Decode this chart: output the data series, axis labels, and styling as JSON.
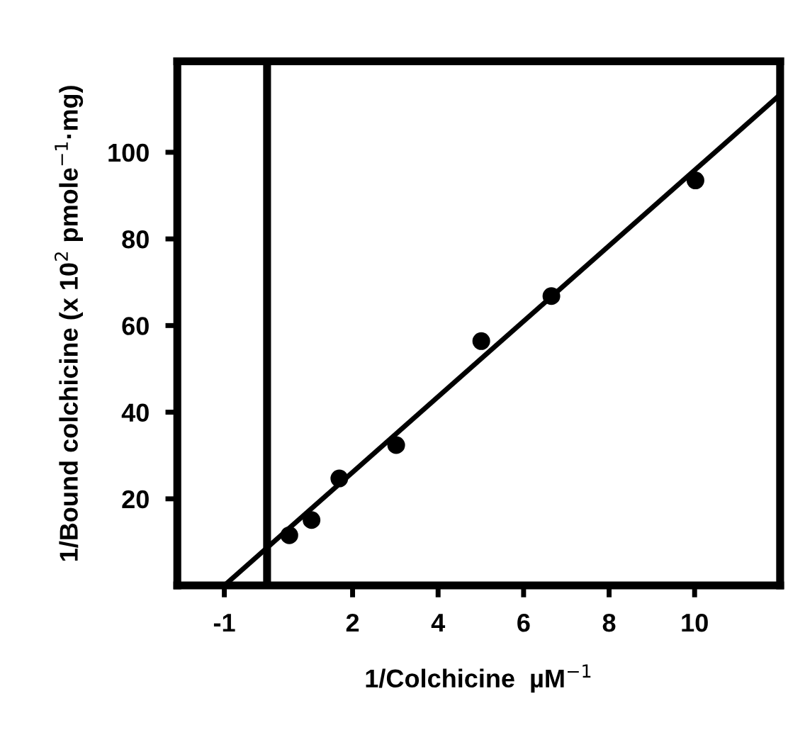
{
  "chart_data": {
    "type": "scatter",
    "xlabel": "1/Colchicine  µM$^{−1}$",
    "ylabel": "1/Bound colchicine (x 10$^{2}$ pmole$^{−1}$·mg)",
    "xlim": [
      -2.1,
      12
    ],
    "ylim": [
      0,
      121
    ],
    "xticks": [
      -1,
      2,
      4,
      6,
      8,
      10
    ],
    "yticks": [
      20,
      40,
      60,
      80,
      100
    ],
    "grid": false,
    "legend": false,
    "series": [
      {
        "color": "#000000",
        "marker": "circle",
        "x": [
          0.52,
          1.04,
          1.69,
          3.02,
          5.01,
          6.65,
          10.02
        ],
        "values": [
          11.6,
          15.1,
          24.7,
          32.4,
          56.4,
          66.8,
          93.5
        ]
      },
      {
        "type": "line",
        "color": "#000000",
        "x": [
          -1,
          12
        ],
        "values": [
          0,
          113.3
        ],
        "line_style": "solid",
        "marker": "none"
      }
    ],
    "ref_lines": [
      {
        "axis": "x",
        "value": 0,
        "color": "#000000"
      }
    ]
  }
}
